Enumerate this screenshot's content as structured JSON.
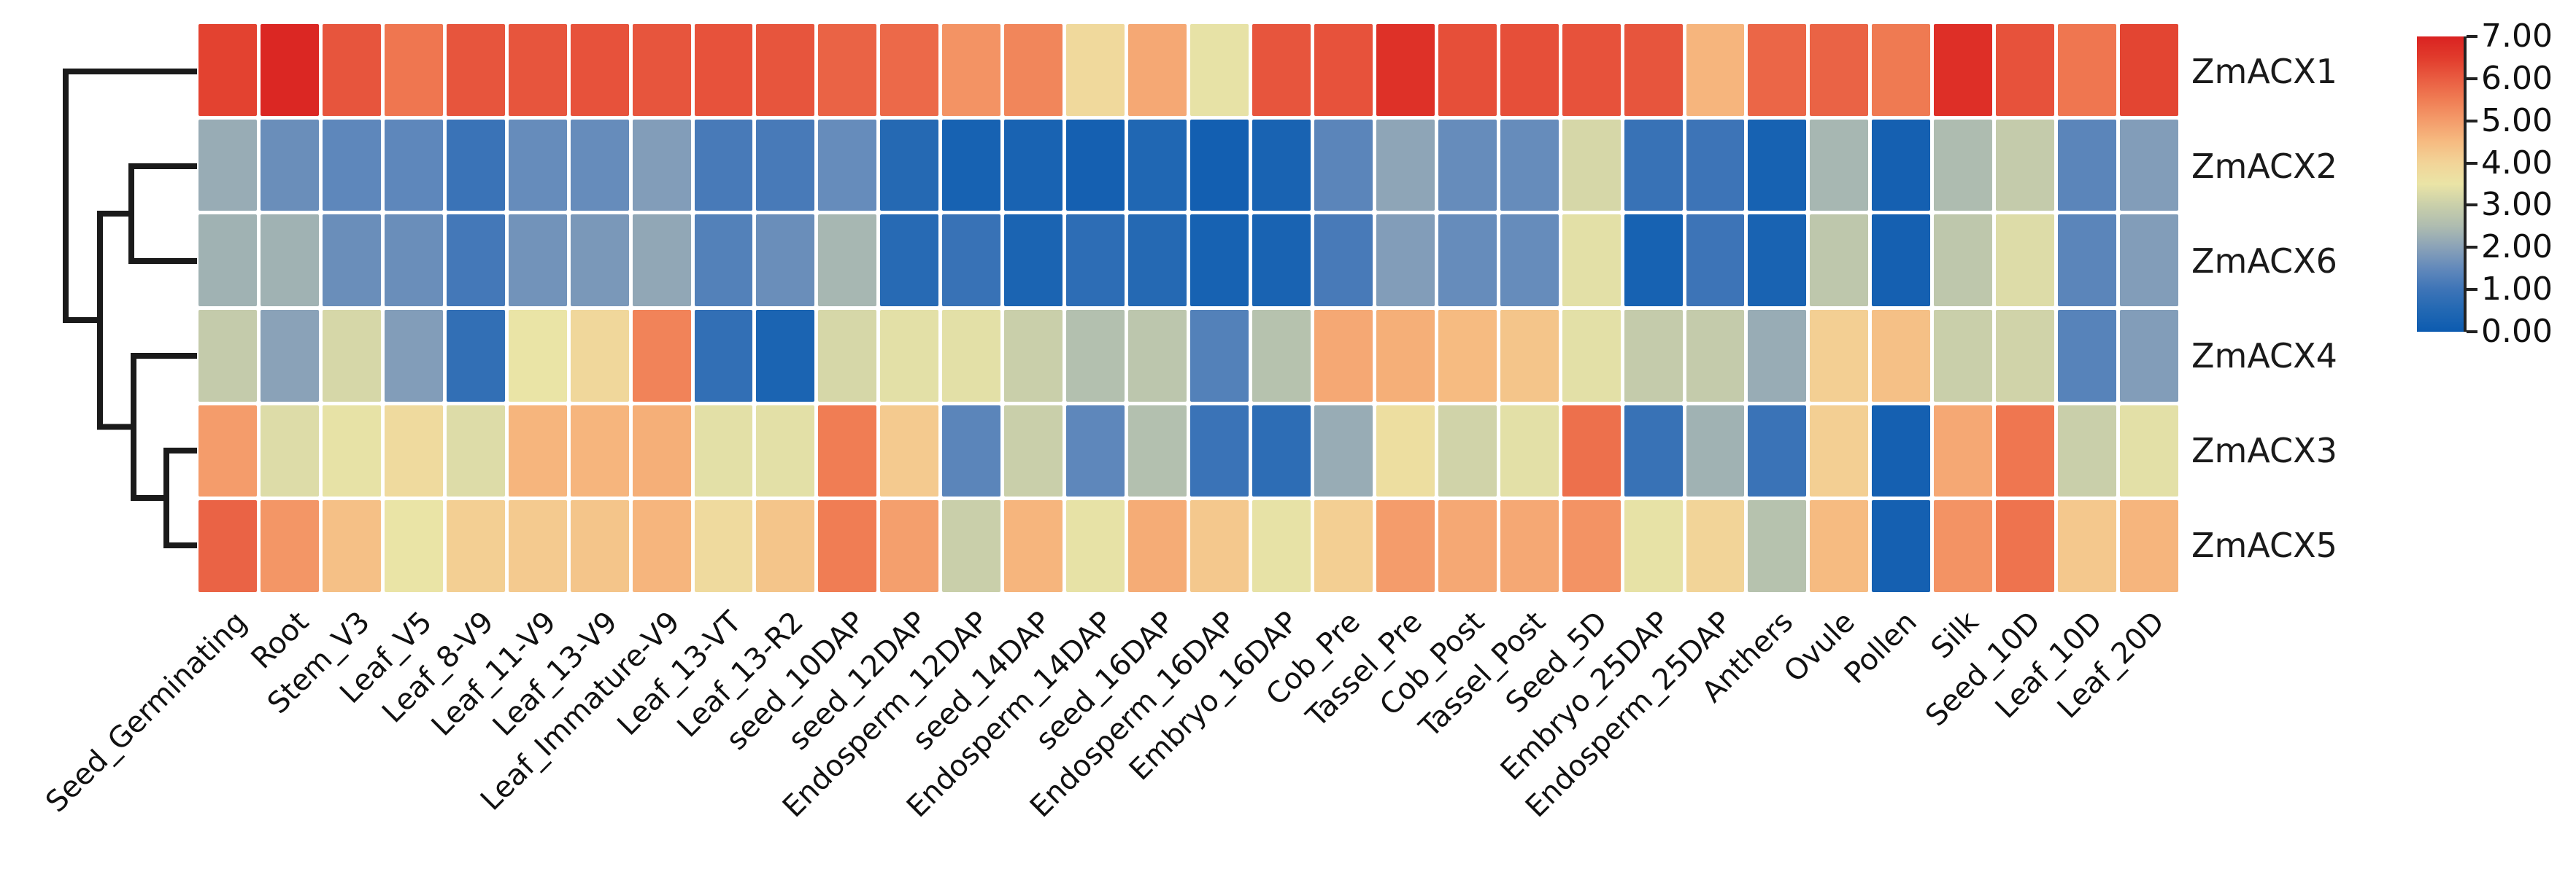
{
  "figure_title": "",
  "rows": [
    "ZmACX1",
    "ZmACX2",
    "ZmACX6",
    "ZmACX4",
    "ZmACX3",
    "ZmACX5"
  ],
  "columns": [
    "Seed_Germinating",
    "Root",
    "Stem_V3",
    "Leaf_V5",
    "Leaf_8-V9",
    "Leaf_11-V9",
    "Leaf_13-V9",
    "Leaf_Immature-V9",
    "Leaf_13-VT",
    "Leaf_13-R2",
    "seed_10DAP",
    "seed_12DAP",
    "Endosperm_12DAP",
    "seed_14DAP",
    "Endosperm_14DAP",
    "seed_16DAP",
    "Endosperm_16DAP",
    "Embryo_16DAP",
    "Cob_Pre",
    "Tassel_Pre",
    "Cob_Post",
    "Tassel_Post",
    "Seed_5D",
    "Embryo_25DAP",
    "Endosperm_25DAP",
    "Anthers",
    "Ovule",
    "Pollen",
    "Silk",
    "Seed_10D",
    "Leaf_10D",
    "Leaf_20D"
  ],
  "chart_data": {
    "type": "heatmap",
    "title": "",
    "rows": [
      "ZmACX1",
      "ZmACX2",
      "ZmACX6",
      "ZmACX4",
      "ZmACX3",
      "ZmACX5"
    ],
    "columns": [
      "Seed_Germinating",
      "Root",
      "Stem_V3",
      "Leaf_V5",
      "Leaf_8-V9",
      "Leaf_11-V9",
      "Leaf_13-V9",
      "Leaf_Immature-V9",
      "Leaf_13-VT",
      "Leaf_13-R2",
      "seed_10DAP",
      "seed_12DAP",
      "Endosperm_12DAP",
      "seed_14DAP",
      "Endosperm_14DAP",
      "seed_16DAP",
      "Endosperm_16DAP",
      "Embryo_16DAP",
      "Cob_Pre",
      "Tassel_Pre",
      "Cob_Post",
      "Tassel_Post",
      "Seed_5D",
      "Embryo_25DAP",
      "Endosperm_25DAP",
      "Anthers",
      "Ovule",
      "Pollen",
      "Silk",
      "Seed_10D",
      "Leaf_10D",
      "Leaf_20D"
    ],
    "values": [
      [
        6.4,
        6.9,
        6.1,
        5.6,
        6.1,
        6.1,
        6.15,
        6.1,
        6.15,
        6.1,
        5.9,
        5.8,
        5.15,
        5.35,
        3.85,
        4.8,
        3.45,
        6.1,
        6.15,
        6.7,
        6.2,
        6.2,
        6.15,
        6.1,
        4.6,
        5.85,
        5.9,
        5.55,
        6.75,
        6.15,
        5.6,
        6.35
      ],
      [
        2.2,
        1.6,
        1.45,
        1.45,
        0.95,
        1.55,
        1.55,
        1.9,
        1.15,
        1.15,
        1.55,
        0.55,
        0.25,
        0.3,
        0.2,
        0.45,
        0.15,
        0.3,
        1.4,
        2.05,
        1.55,
        1.55,
        3.2,
        0.9,
        1.0,
        0.25,
        2.4,
        0.2,
        2.5,
        2.9,
        1.4,
        1.9
      ],
      [
        2.3,
        2.3,
        1.6,
        1.6,
        1.1,
        1.7,
        1.8,
        2.1,
        1.3,
        1.6,
        2.4,
        0.6,
        0.9,
        0.35,
        0.7,
        0.55,
        0.25,
        0.3,
        1.15,
        1.9,
        1.55,
        1.55,
        3.4,
        0.25,
        1.0,
        0.3,
        2.8,
        0.2,
        2.8,
        3.3,
        1.4,
        1.9
      ],
      [
        2.9,
        2.0,
        3.2,
        1.9,
        0.8,
        3.5,
        3.9,
        5.4,
        0.8,
        0.35,
        3.2,
        3.4,
        3.4,
        3.0,
        2.6,
        2.75,
        1.3,
        2.65,
        4.8,
        4.7,
        4.5,
        4.3,
        3.4,
        2.9,
        2.9,
        2.2,
        4.1,
        4.4,
        3.0,
        3.1,
        1.35,
        1.9
      ],
      [
        5.0,
        3.3,
        3.45,
        3.8,
        3.3,
        4.6,
        4.6,
        4.7,
        3.4,
        3.4,
        5.5,
        4.2,
        1.4,
        3.0,
        1.45,
        2.6,
        0.95,
        0.7,
        2.2,
        3.7,
        3.1,
        3.4,
        5.7,
        0.9,
        2.3,
        0.95,
        4.1,
        0.2,
        4.8,
        5.6,
        3.0,
        3.4
      ],
      [
        5.9,
        5.1,
        4.4,
        3.5,
        4.1,
        4.2,
        4.3,
        4.6,
        3.8,
        4.3,
        5.5,
        4.95,
        3.0,
        4.6,
        3.45,
        4.75,
        4.25,
        3.45,
        4.1,
        5.0,
        4.8,
        4.8,
        5.15,
        3.45,
        4.0,
        2.65,
        4.5,
        0.2,
        5.15,
        5.65,
        4.25,
        4.6
      ]
    ],
    "value_range": [
      0,
      7
    ],
    "legend_position": "right",
    "grid": false,
    "row_clustering_newick": "(ZmACX1,((ZmACX2,ZmACX6),(ZmACX4,(ZmACX3,ZmACX5))))"
  },
  "legend": {
    "ticks": [
      "7.00",
      "6.00",
      "5.00",
      "4.00",
      "3.00",
      "2.00",
      "1.00",
      "0.00"
    ]
  },
  "color_scale": {
    "low_color": "#0c5bb0",
    "mid_color": "#eae4a6",
    "high_color": "#da2221",
    "stops": [
      [
        0.0,
        "#0c5bb0"
      ],
      [
        0.5,
        "#2268b3"
      ],
      [
        1.0,
        "#3d74b7"
      ],
      [
        1.5,
        "#6289bb"
      ],
      [
        2.0,
        "#8aa2b8"
      ],
      [
        2.5,
        "#aebcb0"
      ],
      [
        3.0,
        "#c9cfaa"
      ],
      [
        3.5,
        "#eae4a6"
      ],
      [
        4.0,
        "#f2d498"
      ],
      [
        4.5,
        "#f6bb81"
      ],
      [
        5.0,
        "#f49c6b"
      ],
      [
        5.5,
        "#f07d54"
      ],
      [
        6.0,
        "#e95c41"
      ],
      [
        6.5,
        "#e13b2c"
      ],
      [
        7.0,
        "#da2221"
      ]
    ],
    "dendrogram_color": "#1a1a1a"
  }
}
